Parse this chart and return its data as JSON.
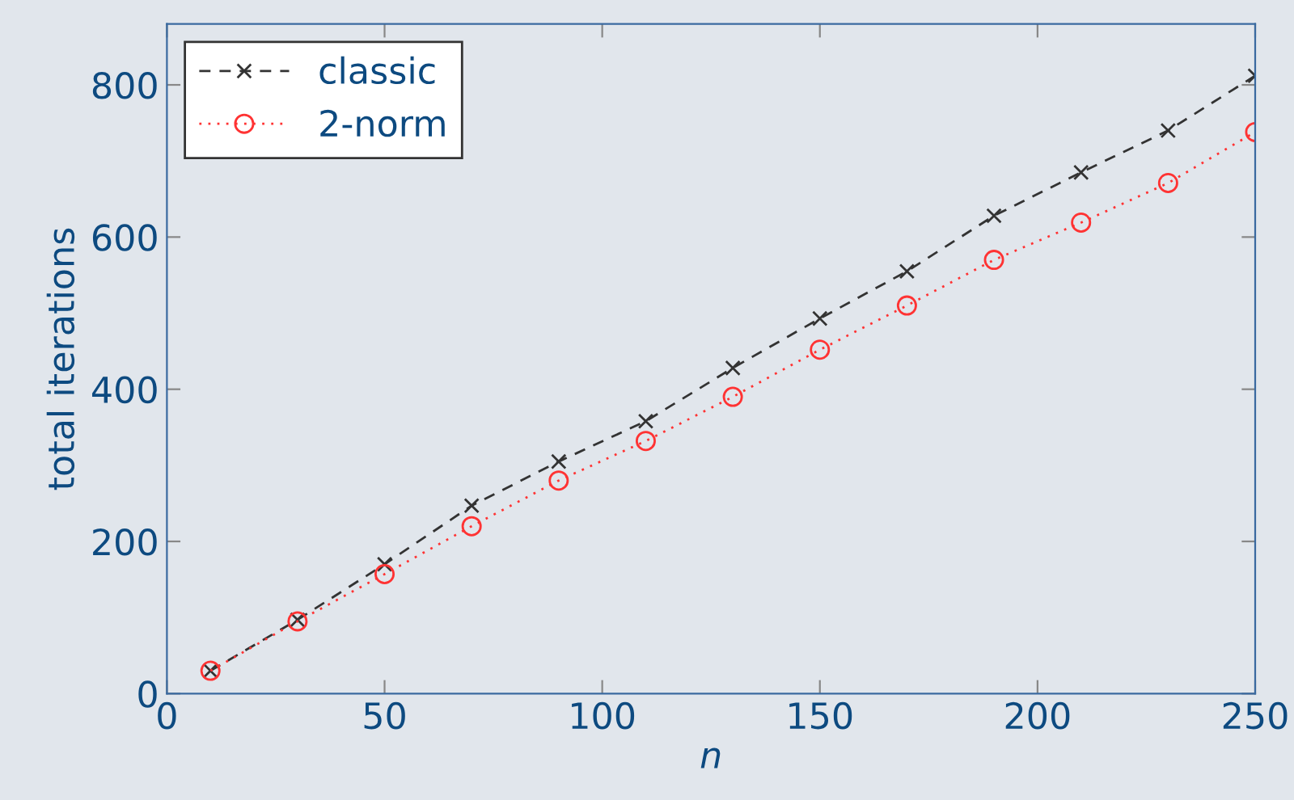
{
  "chart_data": {
    "type": "line",
    "xlabel": "n",
    "ylabel": "total iterations",
    "x": [
      10,
      30,
      50,
      70,
      90,
      110,
      130,
      150,
      170,
      190,
      210,
      230,
      250
    ],
    "series": [
      {
        "name": "classic",
        "color": "#333333",
        "marker": "cross",
        "line_style": "dashed",
        "values": [
          30,
          97,
          170,
          247,
          305,
          358,
          428,
          493,
          555,
          628,
          685,
          740,
          812
        ]
      },
      {
        "name": "2-norm",
        "color": "#ff3333",
        "marker": "circle",
        "line_style": "dotted",
        "values": [
          30,
          95,
          157,
          220,
          280,
          332,
          390,
          452,
          510,
          570,
          619,
          671,
          738
        ]
      }
    ],
    "xlim": [
      0,
      250
    ],
    "xticks": [
      0,
      50,
      100,
      150,
      200,
      250
    ],
    "ylim": [
      0,
      880
    ],
    "yticks": [
      0,
      200,
      400,
      600,
      800
    ],
    "grid": false,
    "legend": "top left"
  }
}
